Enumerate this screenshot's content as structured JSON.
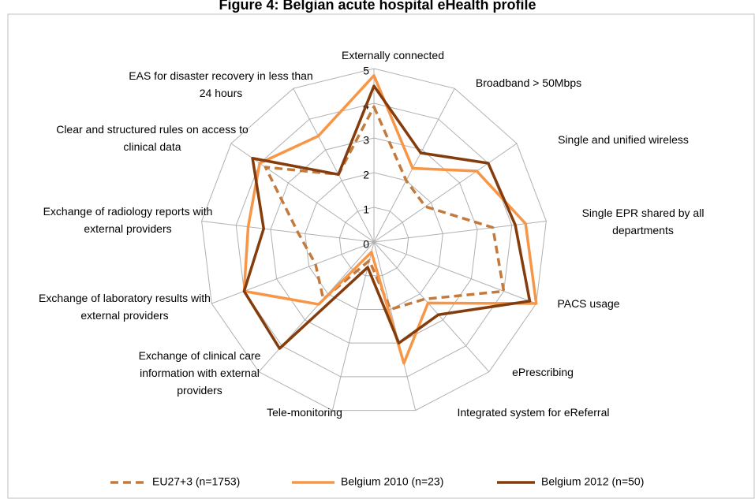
{
  "chart_data": {
    "type": "radar",
    "title": "Figure 4: Belgian acute hospital eHealth profile",
    "categories": [
      "Externally connected",
      "Broadband > 50Mbps",
      "Single and unified wireless",
      "Single EPR shared by all departments",
      "PACS usage",
      "ePrescribing",
      "Integrated system for eReferral",
      "Tele-monitoring",
      "Exchange of clinical care information with external providers",
      "Exchange of laboratory results with external providers",
      "Exchange of radiology reports with external providers",
      "Clear and structured rules on access to clinical data",
      "EAS for disaster recovery in less than 24 hours"
    ],
    "series": [
      {
        "name": "EU27+3 (n=1753)",
        "color": "#c47a3d",
        "dashed": true,
        "values": [
          3.9,
          2.0,
          1.8,
          3.45,
          4.0,
          2.2,
          2.0,
          0.55,
          2.2,
          1.8,
          2.2,
          3.8,
          2.2
        ]
      },
      {
        "name": "Belgium 2010 (n=23)",
        "color": "#f79646",
        "dashed": false,
        "values": [
          4.8,
          2.4,
          3.6,
          4.4,
          5.0,
          2.35,
          3.6,
          0.3,
          2.4,
          4.0,
          3.65,
          4.0,
          3.45
        ]
      },
      {
        "name": "Belgium 2012 (n=50)",
        "color": "#843c0c",
        "dashed": false,
        "values": [
          4.5,
          2.9,
          4.0,
          4.1,
          4.8,
          2.8,
          3.0,
          0.75,
          4.1,
          4.0,
          3.2,
          4.25,
          2.2
        ]
      }
    ],
    "ylim": [
      0,
      5
    ],
    "yticks": [
      0,
      1,
      2,
      3,
      4,
      5
    ],
    "grid": true,
    "legend": "bottom"
  }
}
